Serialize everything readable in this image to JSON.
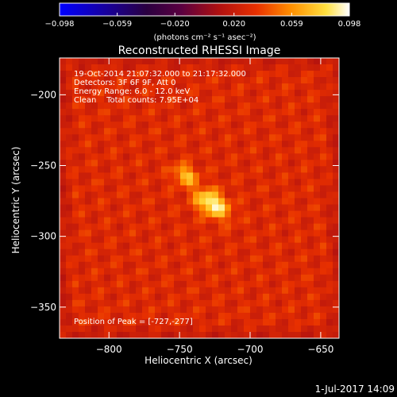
{
  "chart_data": {
    "type": "heatmap",
    "title": "Reconstructed RHESSI Image",
    "xlabel": "Heliocentric X (arcsec)",
    "ylabel": "Heliocentric Y (arcsec)",
    "xlim": [
      -835,
      -637
    ],
    "ylim": [
      -372,
      -174
    ],
    "x_ticks": [
      -800,
      -750,
      -700,
      -650
    ],
    "y_ticks": [
      -350,
      -300,
      -250,
      -200
    ],
    "x_tick_labels": [
      "−800",
      "−750",
      "−700",
      "−650"
    ],
    "y_tick_labels": [
      "−350",
      "−300",
      "−250",
      "−200"
    ],
    "colorbar": {
      "range": [
        -0.098,
        0.098
      ],
      "ticks": [
        -0.098,
        -0.059,
        -0.02,
        0.02,
        0.059,
        0.098
      ],
      "tick_labels": [
        "−0.098",
        "−0.059",
        "−0.020",
        "0.020",
        "0.059",
        "0.098"
      ],
      "unit_label": "(photons cm⁻² s⁻¹ asec⁻²)"
    },
    "annotations": [
      "19-Oct-2014 21:07:32.000 to 21:17:32.000",
      "Detectors: 3F 6F 9F, Att 0",
      "Energy Range: 6.0 - 12.0 keV",
      "Clean    Total counts: 7.95E+04"
    ],
    "peak_label": "Position of Peak = [-727,-277]",
    "peak_position": [
      -727,
      -277
    ],
    "sources": [
      {
        "x": -727,
        "y": -277,
        "peak": 0.098,
        "sigma_major": 9,
        "sigma_minor": 5.5,
        "angle_deg": -35
      },
      {
        "x": -746,
        "y": -257,
        "peak": 0.075,
        "sigma_major": 6,
        "sigma_minor": 4.5,
        "angle_deg": -35
      }
    ],
    "background_level": 0.03
  },
  "footer": {
    "date_stamp": "1-Jul-2017 14:09"
  }
}
